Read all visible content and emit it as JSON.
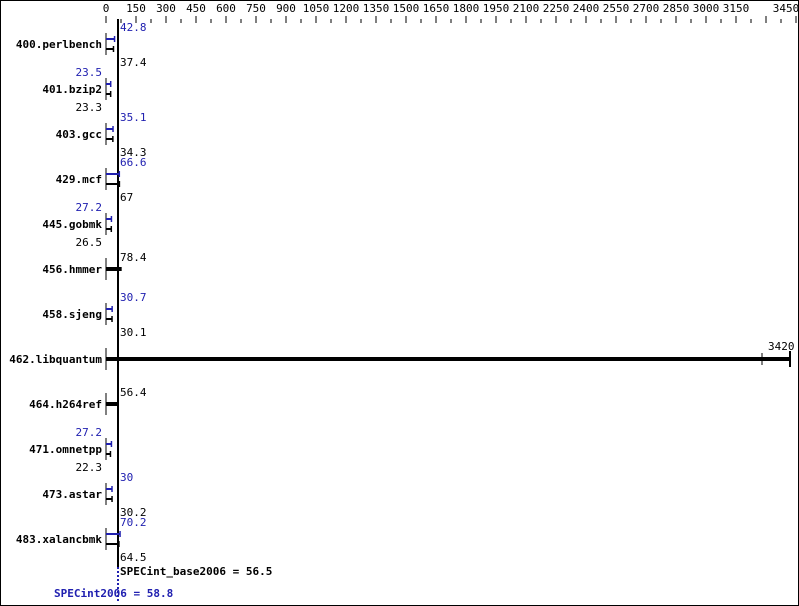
{
  "chart_data": {
    "type": "bar",
    "orientation": "horizontal",
    "xlim": [
      0,
      3450
    ],
    "x_ticks": [
      0,
      150,
      300,
      450,
      600,
      750,
      900,
      1050,
      1200,
      1350,
      1500,
      1650,
      1800,
      1950,
      2100,
      2250,
      2400,
      2550,
      2700,
      2850,
      3000,
      3150,
      3450
    ],
    "categories": [
      "400.perlbench",
      "401.bzip2",
      "403.gcc",
      "429.mcf",
      "445.gobmk",
      "456.hmmer",
      "458.sjeng",
      "462.libquantum",
      "464.h264ref",
      "471.omnetpp",
      "473.astar",
      "483.xalancbmk"
    ],
    "series": [
      {
        "name": "SPECint2006",
        "color": "#2020b0",
        "values": [
          42.8,
          23.5,
          35.1,
          66.6,
          27.2,
          null,
          30.7,
          null,
          null,
          27.2,
          30.0,
          70.2
        ]
      },
      {
        "name": "SPECint_base2006",
        "color": "#000000",
        "values": [
          37.4,
          23.3,
          34.3,
          67.0,
          26.5,
          78.4,
          30.1,
          3420,
          56.4,
          22.3,
          30.2,
          64.5
        ]
      }
    ],
    "annotations": {
      "base_label": "SPECint_base2006 = 56.5",
      "base_value": 56.5,
      "peak_label": "SPECint2006 = 58.8",
      "peak_value": 58.8
    },
    "grid": false
  }
}
